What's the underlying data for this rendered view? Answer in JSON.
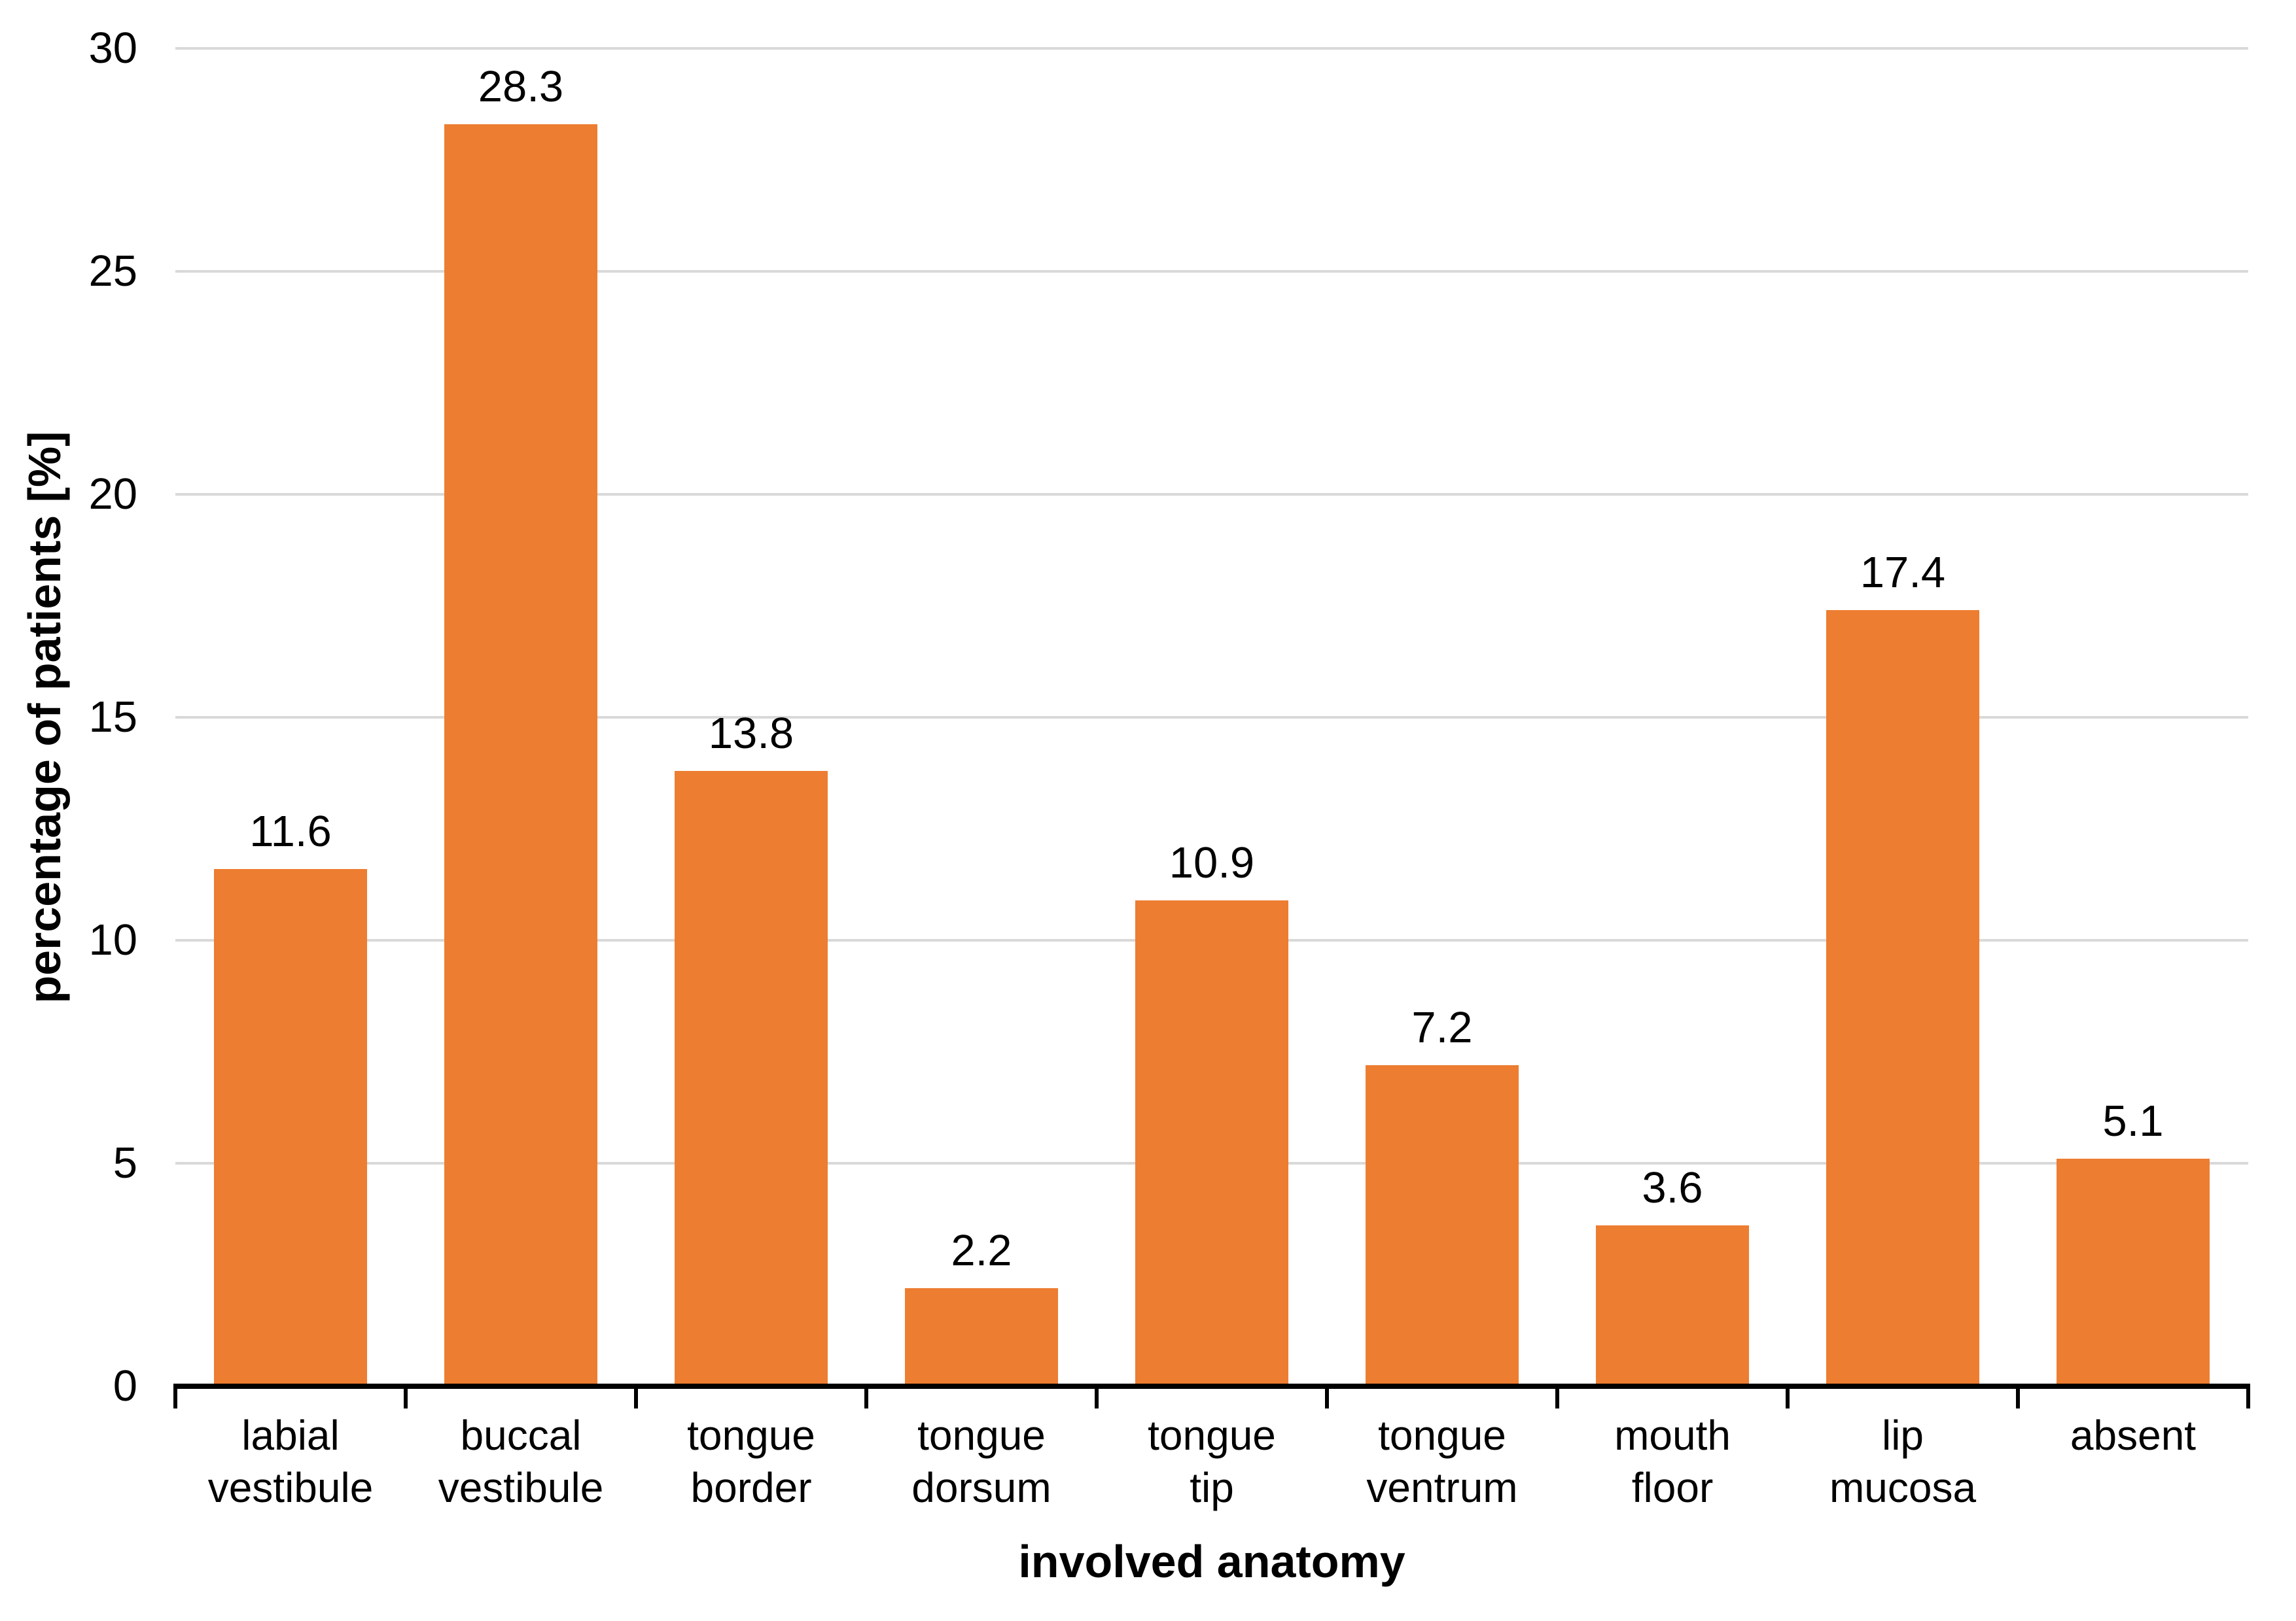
{
  "figure": {
    "background": "#FFFFFF",
    "text_color": "#000000"
  },
  "chart_data": {
    "type": "bar",
    "title": "",
    "categories": [
      "labial\nvestibule",
      "buccal\nvestibule",
      "tongue\nborder",
      "tongue\ndorsum",
      "tongue\ntip",
      "tongue\nventrum",
      "mouth\nfloor",
      "lip\nmucosa",
      "absent"
    ],
    "values": [
      11.6,
      28.3,
      13.8,
      2.2,
      10.9,
      7.2,
      3.6,
      17.4,
      5.1
    ],
    "data_labels": [
      "11.6",
      "28.3",
      "13.8",
      "2.2",
      "10.9",
      "7.2",
      "3.6",
      "17.4",
      "5.1"
    ],
    "xlabel": "involved anatomy",
    "ylabel": "percentage of patients [%]",
    "ylim": [
      0,
      30
    ],
    "yticks": [
      0,
      5,
      10,
      15,
      20,
      25,
      30
    ],
    "grid": "horizontal",
    "legend": "none",
    "bar_color": "#ED7D31",
    "gridline_color": "#D9D9D9",
    "axis_color": "#000000",
    "label_color": "#000000"
  }
}
